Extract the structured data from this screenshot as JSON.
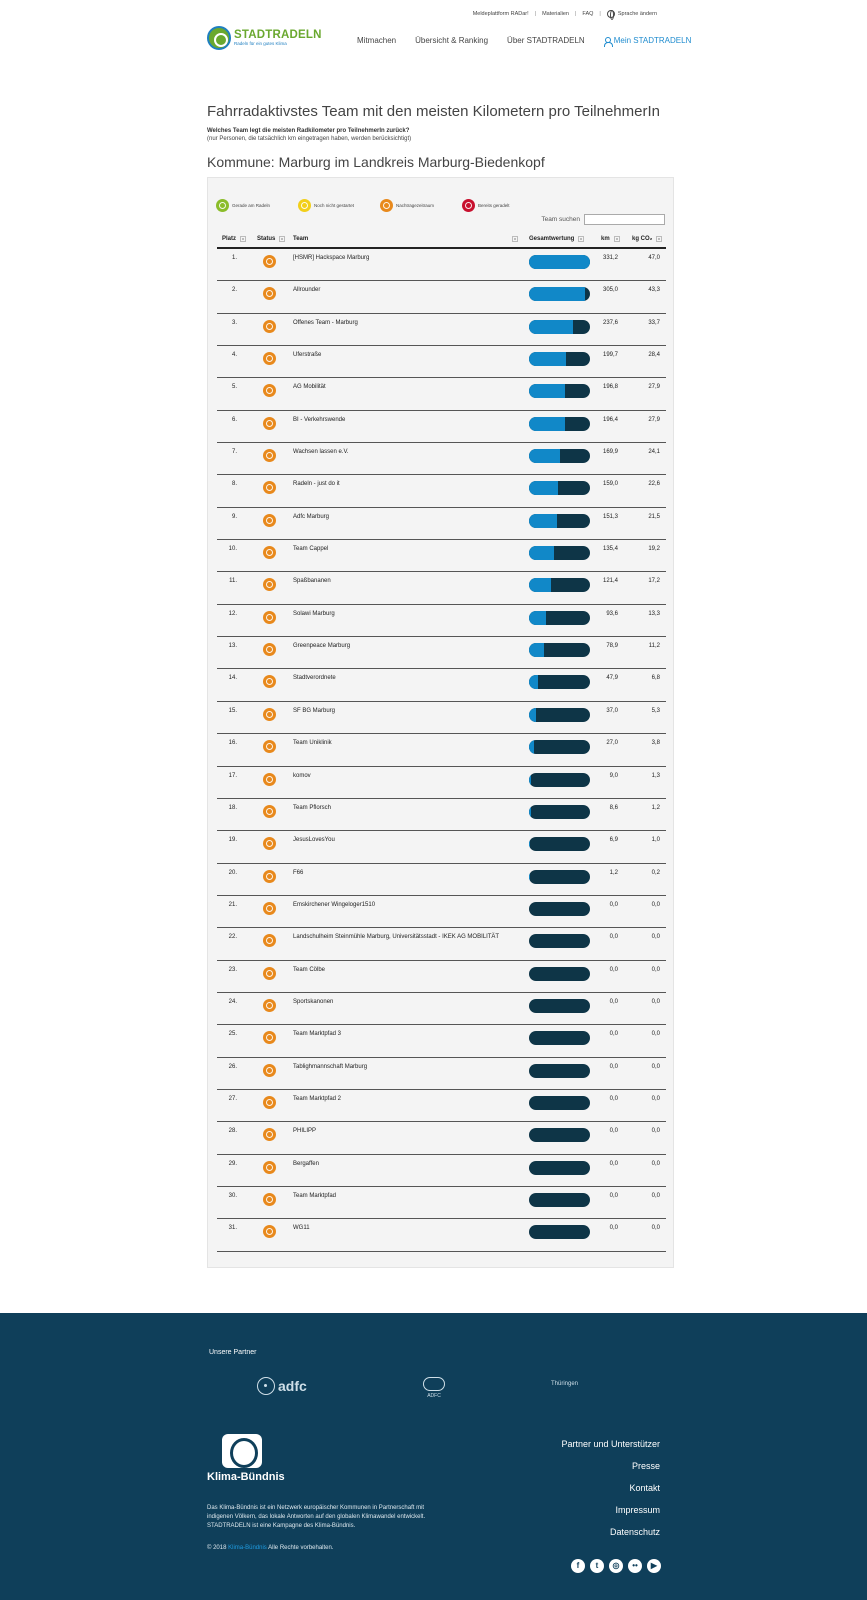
{
  "topbar": {
    "link1": "Meldeplattform RADar!",
    "link2": "Materialien",
    "link3": "FAQ",
    "lang": "Sprache ändern"
  },
  "logo": {
    "brand": "STADTRADELN",
    "tagline": "Radeln für ein gutes Klima"
  },
  "nav": {
    "mitmachen": "Mitmachen",
    "uebersicht": "Übersicht & Ranking",
    "ueber": "Über STADTRADELN",
    "mein": "Mein STADTRADELN"
  },
  "page": {
    "title": "Fahrradaktivstes Team mit den meisten Kilometern pro TeilnehmerIn",
    "question": "Welches Team legt die meisten Radkilometer pro TeilnehmerIn zurück?",
    "note": "(nur Personen, die tatsächlich km eingetragen haben, werden berücksichtigt)",
    "kommune": "Kommune: Marburg im Landkreis Marburg-Biedenkopf"
  },
  "legend": {
    "items": [
      {
        "label": "Gerade am Radeln",
        "color": "#8bbd2a"
      },
      {
        "label": "Noch nicht gestartet",
        "color": "#f2cf1a"
      },
      {
        "label": "Nachtragezeitraum",
        "color": "#e8891c"
      },
      {
        "label": "Bereits geradelt",
        "color": "#c8102e"
      }
    ]
  },
  "search": {
    "label": "Team suchen",
    "value": ""
  },
  "table": {
    "headers": {
      "platz": "Platz",
      "status": "Status",
      "team": "Team",
      "gesamt": "Gesamtwertung",
      "km": "km",
      "co2": "kg CO₂"
    },
    "max_km": 331.2,
    "rows": [
      {
        "platz": "1.",
        "team": "[HSMR] Hackspace Marburg",
        "km": "331,2",
        "co2": "47,0"
      },
      {
        "platz": "2.",
        "team": "Allrounder",
        "km": "305,0",
        "co2": "43,3"
      },
      {
        "platz": "3.",
        "team": "Offenes Team - Marburg",
        "km": "237,6",
        "co2": "33,7"
      },
      {
        "platz": "4.",
        "team": "Uferstraße",
        "km": "199,7",
        "co2": "28,4"
      },
      {
        "platz": "5.",
        "team": "AG Mobilität",
        "km": "196,8",
        "co2": "27,9"
      },
      {
        "platz": "6.",
        "team": "BI - Verkehrswende",
        "km": "196,4",
        "co2": "27,9"
      },
      {
        "platz": "7.",
        "team": "Wachsen lassen e.V.",
        "km": "169,9",
        "co2": "24,1"
      },
      {
        "platz": "8.",
        "team": "Radeln - just do it",
        "km": "159,0",
        "co2": "22,6"
      },
      {
        "platz": "9.",
        "team": "Adfc Marburg",
        "km": "151,3",
        "co2": "21,5"
      },
      {
        "platz": "10.",
        "team": "Team Cappel",
        "km": "135,4",
        "co2": "19,2"
      },
      {
        "platz": "11.",
        "team": "Spaßbananen",
        "km": "121,4",
        "co2": "17,2"
      },
      {
        "platz": "12.",
        "team": "Solawi Marburg",
        "km": "93,6",
        "co2": "13,3"
      },
      {
        "platz": "13.",
        "team": "Greenpeace Marburg",
        "km": "78,9",
        "co2": "11,2"
      },
      {
        "platz": "14.",
        "team": "Stadtverordnete",
        "km": "47,9",
        "co2": "6,8"
      },
      {
        "platz": "15.",
        "team": "SF BG Marburg",
        "km": "37,0",
        "co2": "5,3"
      },
      {
        "platz": "16.",
        "team": "Team Uniklinik",
        "km": "27,0",
        "co2": "3,8"
      },
      {
        "platz": "17.",
        "team": "komov",
        "km": "9,0",
        "co2": "1,3"
      },
      {
        "platz": "18.",
        "team": "Team Pflorsch",
        "km": "8,6",
        "co2": "1,2"
      },
      {
        "platz": "19.",
        "team": "JesusLovesYou",
        "km": "6,9",
        "co2": "1,0"
      },
      {
        "platz": "20.",
        "team": "F66",
        "km": "1,2",
        "co2": "0,2"
      },
      {
        "platz": "21.",
        "team": "Emskirchener Wingeloger1510",
        "km": "0,0",
        "co2": "0,0"
      },
      {
        "platz": "22.",
        "team": "Landschulheim Steinmühle Marburg, Universitätsstadt - IKEK AG MOBILITÄT",
        "km": "0,0",
        "co2": "0,0"
      },
      {
        "platz": "23.",
        "team": "Team Cölbe",
        "km": "0,0",
        "co2": "0,0"
      },
      {
        "platz": "24.",
        "team": "Sportskanonen",
        "km": "0,0",
        "co2": "0,0"
      },
      {
        "platz": "25.",
        "team": "Team Marktpfad 3",
        "km": "0,0",
        "co2": "0,0"
      },
      {
        "platz": "26.",
        "team": "Tablighmannschaft Marburg",
        "km": "0,0",
        "co2": "0,0"
      },
      {
        "platz": "27.",
        "team": "Team Marktpfad 2",
        "km": "0,0",
        "co2": "0,0"
      },
      {
        "platz": "28.",
        "team": "PHILIPP",
        "km": "0,0",
        "co2": "0,0"
      },
      {
        "platz": "29.",
        "team": "Bergaffen",
        "km": "0,0",
        "co2": "0,0"
      },
      {
        "platz": "30.",
        "team": "Team Marktpfad",
        "km": "0,0",
        "co2": "0,0"
      },
      {
        "platz": "31.",
        "team": "WG11",
        "km": "0,0",
        "co2": "0,0"
      }
    ]
  },
  "footer": {
    "partners_title": "Unsere Partner",
    "partner_adfc": "adfc",
    "partner_adfc_sub": "ADFC",
    "partner_th": "Thüringen",
    "kb_name": "Klima-Bündnis",
    "description": "Das Klima-Bündnis ist ein Netzwerk europäischer Kommunen in Partnerschaft mit indigenen Völkern, das lokale Antworten auf den globalen Klimawandel entwickelt. STADTRADELN ist eine Kampagne des Klima-Bündnis.",
    "copy_prefix": "© 2018",
    "copy_link": "Klima-Bündnis",
    "copy_suffix": "Alle Rechte vorbehalten.",
    "links": [
      "Partner und Unterstützer",
      "Presse",
      "Kontakt",
      "Impressum",
      "Datenschutz"
    ],
    "social": [
      "facebook-icon",
      "twitter-icon",
      "instagram-icon",
      "flickr-icon",
      "youtube-icon"
    ]
  }
}
